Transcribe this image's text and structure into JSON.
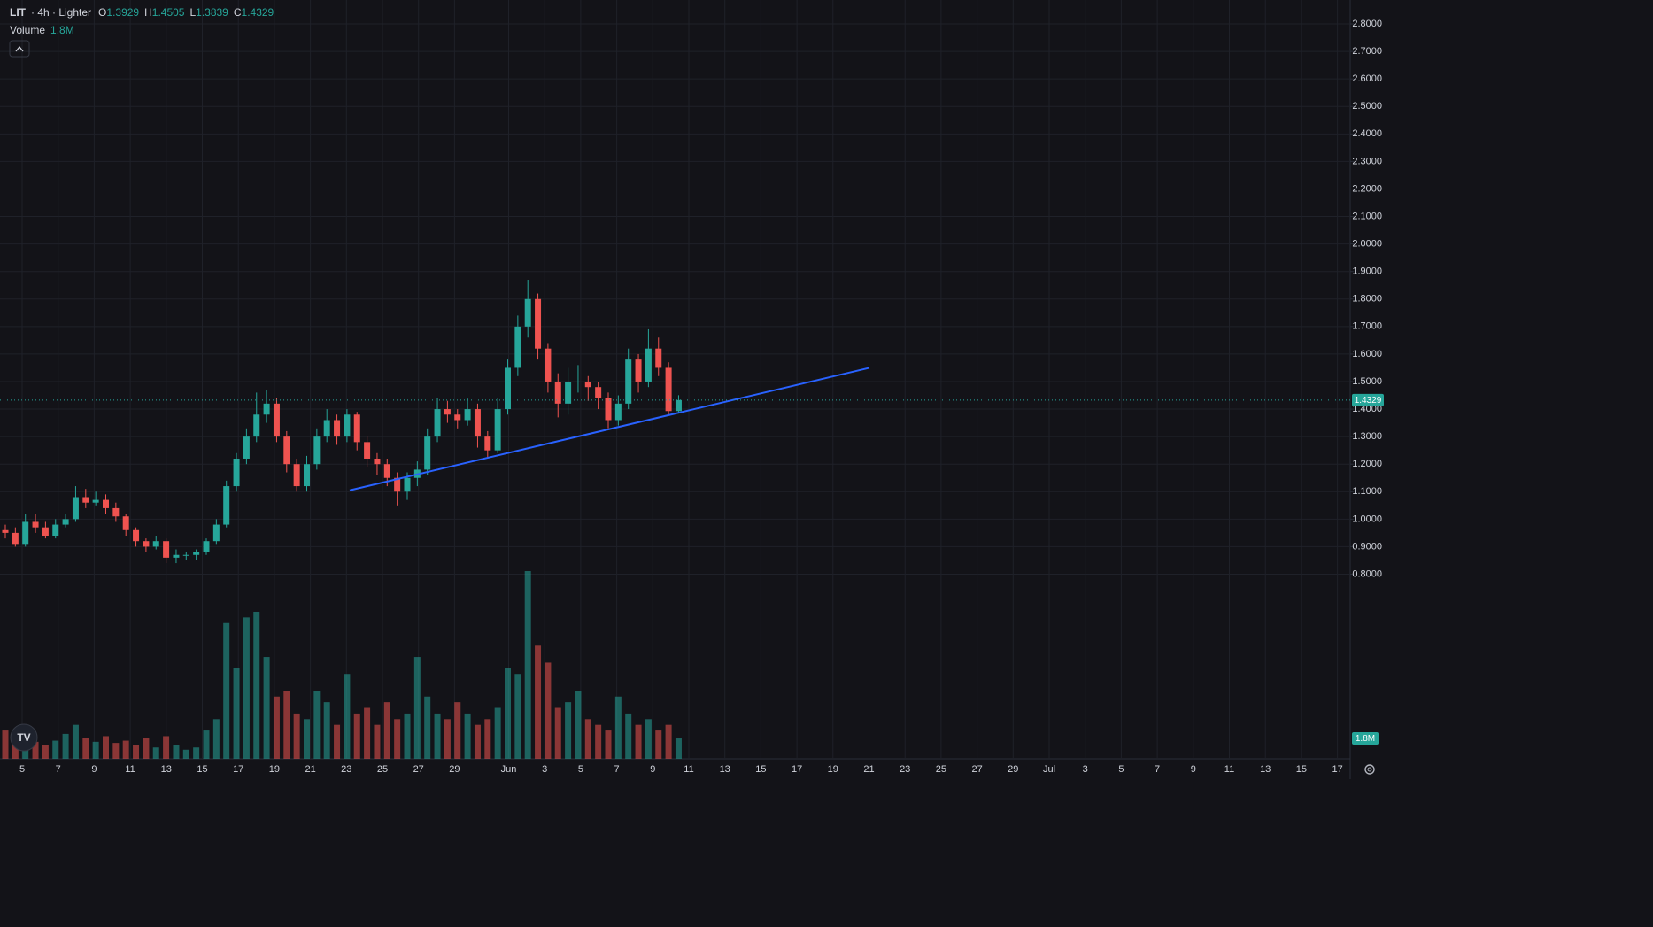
{
  "chart_data": {
    "type": "candlestick",
    "symbol": "LIT",
    "subtitle": "· 4h · Lighter",
    "ohlc_legend": [
      {
        "label": "O",
        "value": 1.3929
      },
      {
        "label": "H",
        "value": 1.4505
      },
      {
        "label": "L",
        "value": 1.3839
      },
      {
        "label": "C",
        "value": 1.4329
      }
    ],
    "up_color": "#26a69a",
    "down_color": "#ef5350",
    "open": [
      0.96,
      0.95,
      0.91,
      0.99,
      0.97,
      0.94,
      0.98,
      1.0,
      1.08,
      1.06,
      1.07,
      1.04,
      1.01,
      0.96,
      0.92,
      0.9,
      0.92,
      0.86,
      0.87,
      0.87,
      0.88,
      0.92,
      0.98,
      1.12,
      1.22,
      1.3,
      1.38,
      1.42,
      1.3,
      1.2,
      1.12,
      1.2,
      1.3,
      1.36,
      1.3,
      1.38,
      1.28,
      1.22,
      1.2,
      1.15,
      1.1,
      1.15,
      1.18,
      1.3,
      1.4,
      1.38,
      1.36,
      1.4,
      1.3,
      1.25,
      1.4,
      1.55,
      1.7,
      1.8,
      1.62,
      1.5,
      1.42,
      1.5,
      1.5,
      1.48,
      1.44,
      1.36,
      1.42,
      1.58,
      1.5,
      1.62,
      1.55,
      1.3929
    ],
    "high": [
      0.98,
      0.97,
      1.02,
      1.02,
      0.99,
      1.0,
      1.02,
      1.12,
      1.11,
      1.1,
      1.09,
      1.06,
      1.02,
      0.97,
      0.93,
      0.94,
      0.93,
      0.89,
      0.88,
      0.89,
      0.93,
      1.0,
      1.14,
      1.24,
      1.33,
      1.46,
      1.47,
      1.44,
      1.32,
      1.22,
      1.23,
      1.33,
      1.4,
      1.38,
      1.4,
      1.39,
      1.3,
      1.24,
      1.22,
      1.17,
      1.17,
      1.21,
      1.33,
      1.44,
      1.43,
      1.4,
      1.44,
      1.42,
      1.32,
      1.44,
      1.58,
      1.74,
      1.87,
      1.82,
      1.64,
      1.53,
      1.55,
      1.56,
      1.52,
      1.5,
      1.46,
      1.45,
      1.62,
      1.6,
      1.69,
      1.66,
      1.57,
      1.4505
    ],
    "low": [
      0.93,
      0.9,
      0.9,
      0.95,
      0.93,
      0.93,
      0.97,
      0.99,
      1.04,
      1.05,
      1.02,
      0.99,
      0.94,
      0.9,
      0.88,
      0.89,
      0.84,
      0.84,
      0.85,
      0.85,
      0.87,
      0.91,
      0.97,
      1.1,
      1.2,
      1.28,
      1.35,
      1.28,
      1.17,
      1.1,
      1.1,
      1.18,
      1.28,
      1.27,
      1.28,
      1.25,
      1.19,
      1.16,
      1.12,
      1.05,
      1.07,
      1.12,
      1.16,
      1.28,
      1.35,
      1.33,
      1.34,
      1.26,
      1.22,
      1.24,
      1.38,
      1.52,
      1.66,
      1.58,
      1.46,
      1.37,
      1.38,
      1.46,
      1.43,
      1.4,
      1.33,
      1.34,
      1.4,
      1.46,
      1.48,
      1.52,
      1.38,
      1.3839
    ],
    "close": [
      0.95,
      0.91,
      0.99,
      0.97,
      0.94,
      0.98,
      1.0,
      1.08,
      1.06,
      1.07,
      1.04,
      1.01,
      0.96,
      0.92,
      0.9,
      0.92,
      0.86,
      0.87,
      0.87,
      0.88,
      0.92,
      0.98,
      1.12,
      1.22,
      1.3,
      1.38,
      1.42,
      1.3,
      1.2,
      1.12,
      1.2,
      1.3,
      1.36,
      1.3,
      1.38,
      1.28,
      1.22,
      1.2,
      1.15,
      1.1,
      1.15,
      1.18,
      1.3,
      1.4,
      1.38,
      1.36,
      1.4,
      1.3,
      1.25,
      1.4,
      1.55,
      1.7,
      1.8,
      1.62,
      1.5,
      1.42,
      1.5,
      1.5,
      1.48,
      1.44,
      1.36,
      1.42,
      1.58,
      1.5,
      1.62,
      1.55,
      1.3929,
      1.4329
    ],
    "volume": {
      "name": "Volume",
      "last_label": "1.8M",
      "values": [
        2500000,
        1800000,
        2000000,
        1500000,
        1200000,
        1600000,
        2200000,
        3000000,
        1800000,
        1500000,
        2000000,
        1400000,
        1600000,
        1200000,
        1800000,
        1000000,
        2000000,
        1200000,
        800000,
        1000000,
        2500000,
        3500000,
        12000000,
        8000000,
        12500000,
        13000000,
        9000000,
        5500000,
        6000000,
        4000000,
        3500000,
        6000000,
        5000000,
        3000000,
        7500000,
        4000000,
        4500000,
        3000000,
        5000000,
        3500000,
        4000000,
        9000000,
        5500000,
        4000000,
        3500000,
        5000000,
        4000000,
        3000000,
        3500000,
        4500000,
        8000000,
        7500000,
        16600000,
        10000000,
        8500000,
        4500000,
        5000000,
        6000000,
        3500000,
        3000000,
        2500000,
        5500000,
        4000000,
        3000000,
        3500000,
        2500000,
        3000000,
        1800000
      ]
    },
    "trendline": {
      "color": "#2962ff",
      "values": [
        1.105,
        1.55
      ]
    },
    "ylim": [
      0.129,
      2.887
    ],
    "yticks": [
      {
        "value": 0.8,
        "label": "0.8000"
      },
      {
        "value": 0.9,
        "label": "0.9000"
      },
      {
        "value": 1.0,
        "label": "1.0000"
      },
      {
        "value": 1.1,
        "label": "1.1000"
      },
      {
        "value": 1.2,
        "label": "1.2000"
      },
      {
        "value": 1.3,
        "label": "1.3000"
      },
      {
        "value": 1.4,
        "label": "1.4000"
      },
      {
        "value": 1.5,
        "label": "1.5000"
      },
      {
        "value": 1.6,
        "label": "1.6000"
      },
      {
        "value": 1.7,
        "label": "1.7000"
      },
      {
        "value": 1.8,
        "label": "1.8000"
      },
      {
        "value": 1.9,
        "label": "1.9000"
      },
      {
        "value": 2.0,
        "label": "2.0000"
      },
      {
        "value": 2.1,
        "label": "2.1000"
      },
      {
        "value": 2.2,
        "label": "2.2000"
      },
      {
        "value": 2.3,
        "label": "2.3000"
      },
      {
        "value": 2.4,
        "label": "2.4000"
      },
      {
        "value": 2.5,
        "label": "2.5000"
      },
      {
        "value": 2.6,
        "label": "2.6000"
      },
      {
        "value": 2.7,
        "label": "2.7000"
      },
      {
        "value": 2.8,
        "label": "2.8000"
      }
    ],
    "xtick_labels": [
      "5",
      "7",
      "9",
      "11",
      "13",
      "15",
      "17",
      "19",
      "21",
      "23",
      "25",
      "27",
      "29",
      "Jun",
      "3",
      "5",
      "7",
      "9",
      "11",
      "13",
      "15",
      "17",
      "19",
      "21",
      "23",
      "25",
      "27",
      "29",
      "Jul",
      "3",
      "5",
      "7",
      "9",
      "11",
      "13",
      "15",
      "17"
    ],
    "grid": true
  }
}
